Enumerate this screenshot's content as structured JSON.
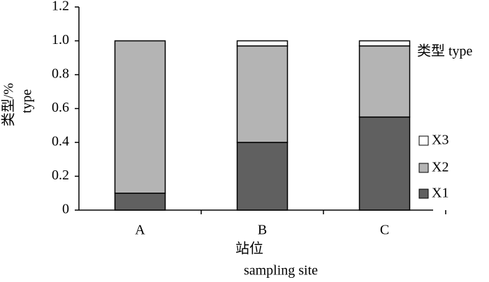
{
  "chart_data": {
    "type": "stacked_bar",
    "x_label": [
      "站位",
      "sampling site"
    ],
    "y_label": [
      "类型/%",
      "type"
    ],
    "legend_title": "类型 type",
    "categories": [
      "A",
      "B",
      "C"
    ],
    "series": [
      {
        "name": "X1",
        "color": "#606060",
        "values": [
          0.1,
          0.4,
          0.55
        ]
      },
      {
        "name": "X2",
        "color": "#b4b4b4",
        "values": [
          0.9,
          0.57,
          0.42
        ]
      },
      {
        "name": "X3",
        "color": "#ffffff",
        "values": [
          0,
          0.03,
          0.03
        ]
      }
    ],
    "ylim": [
      0,
      1.2
    ],
    "yticks": [
      0,
      0.2,
      0.4,
      0.6,
      0.8,
      {
        "value": 1,
        "label": "1.0"
      },
      1.2
    ],
    "legend": "right"
  }
}
